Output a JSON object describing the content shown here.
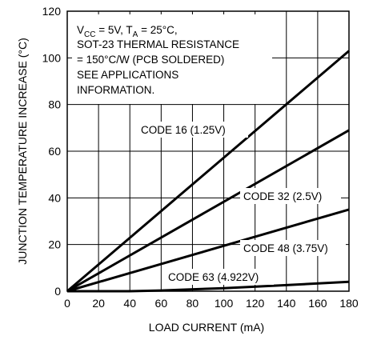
{
  "chart_data": {
    "type": "line",
    "xlabel": "LOAD CURRENT (mA)",
    "ylabel": "JUNCTION TEMPERATURE INCREASE (°C)",
    "xlim": [
      0,
      180
    ],
    "ylim": [
      0,
      120
    ],
    "xticks": [
      "0",
      "20",
      "40",
      "60",
      "80",
      "100",
      "120",
      "140",
      "160",
      "180"
    ],
    "yticks": [
      "0",
      "20",
      "40",
      "60",
      "80",
      "100",
      "120"
    ],
    "grid": true,
    "annotation": {
      "line1_prefix": "V",
      "line1_sub1": "CC",
      "line1_mid": " = 5V, T",
      "line1_sub2": "A",
      "line1_suffix": " = 25°C,",
      "line2": "SOT-23 THERMAL RESISTANCE",
      "line3": "= 150°C/W (PCB SOLDERED)",
      "line4": "SEE APPLICATIONS",
      "line5": "INFORMATION."
    },
    "series": [
      {
        "name": "CODE 16 (1.25V)",
        "x": [
          0,
          180
        ],
        "y": [
          0,
          103
        ]
      },
      {
        "name": "CODE 32 (2.5V)",
        "x": [
          0,
          180
        ],
        "y": [
          0,
          69
        ]
      },
      {
        "name": "CODE 48 (3.75V)",
        "x": [
          0,
          180
        ],
        "y": [
          0,
          35
        ]
      },
      {
        "name": "CODE 63 (4.922V)",
        "x": [
          0,
          40,
          60,
          100,
          140,
          180
        ],
        "y": [
          0,
          0,
          0.3,
          1.3,
          2.6,
          4
        ]
      }
    ]
  }
}
